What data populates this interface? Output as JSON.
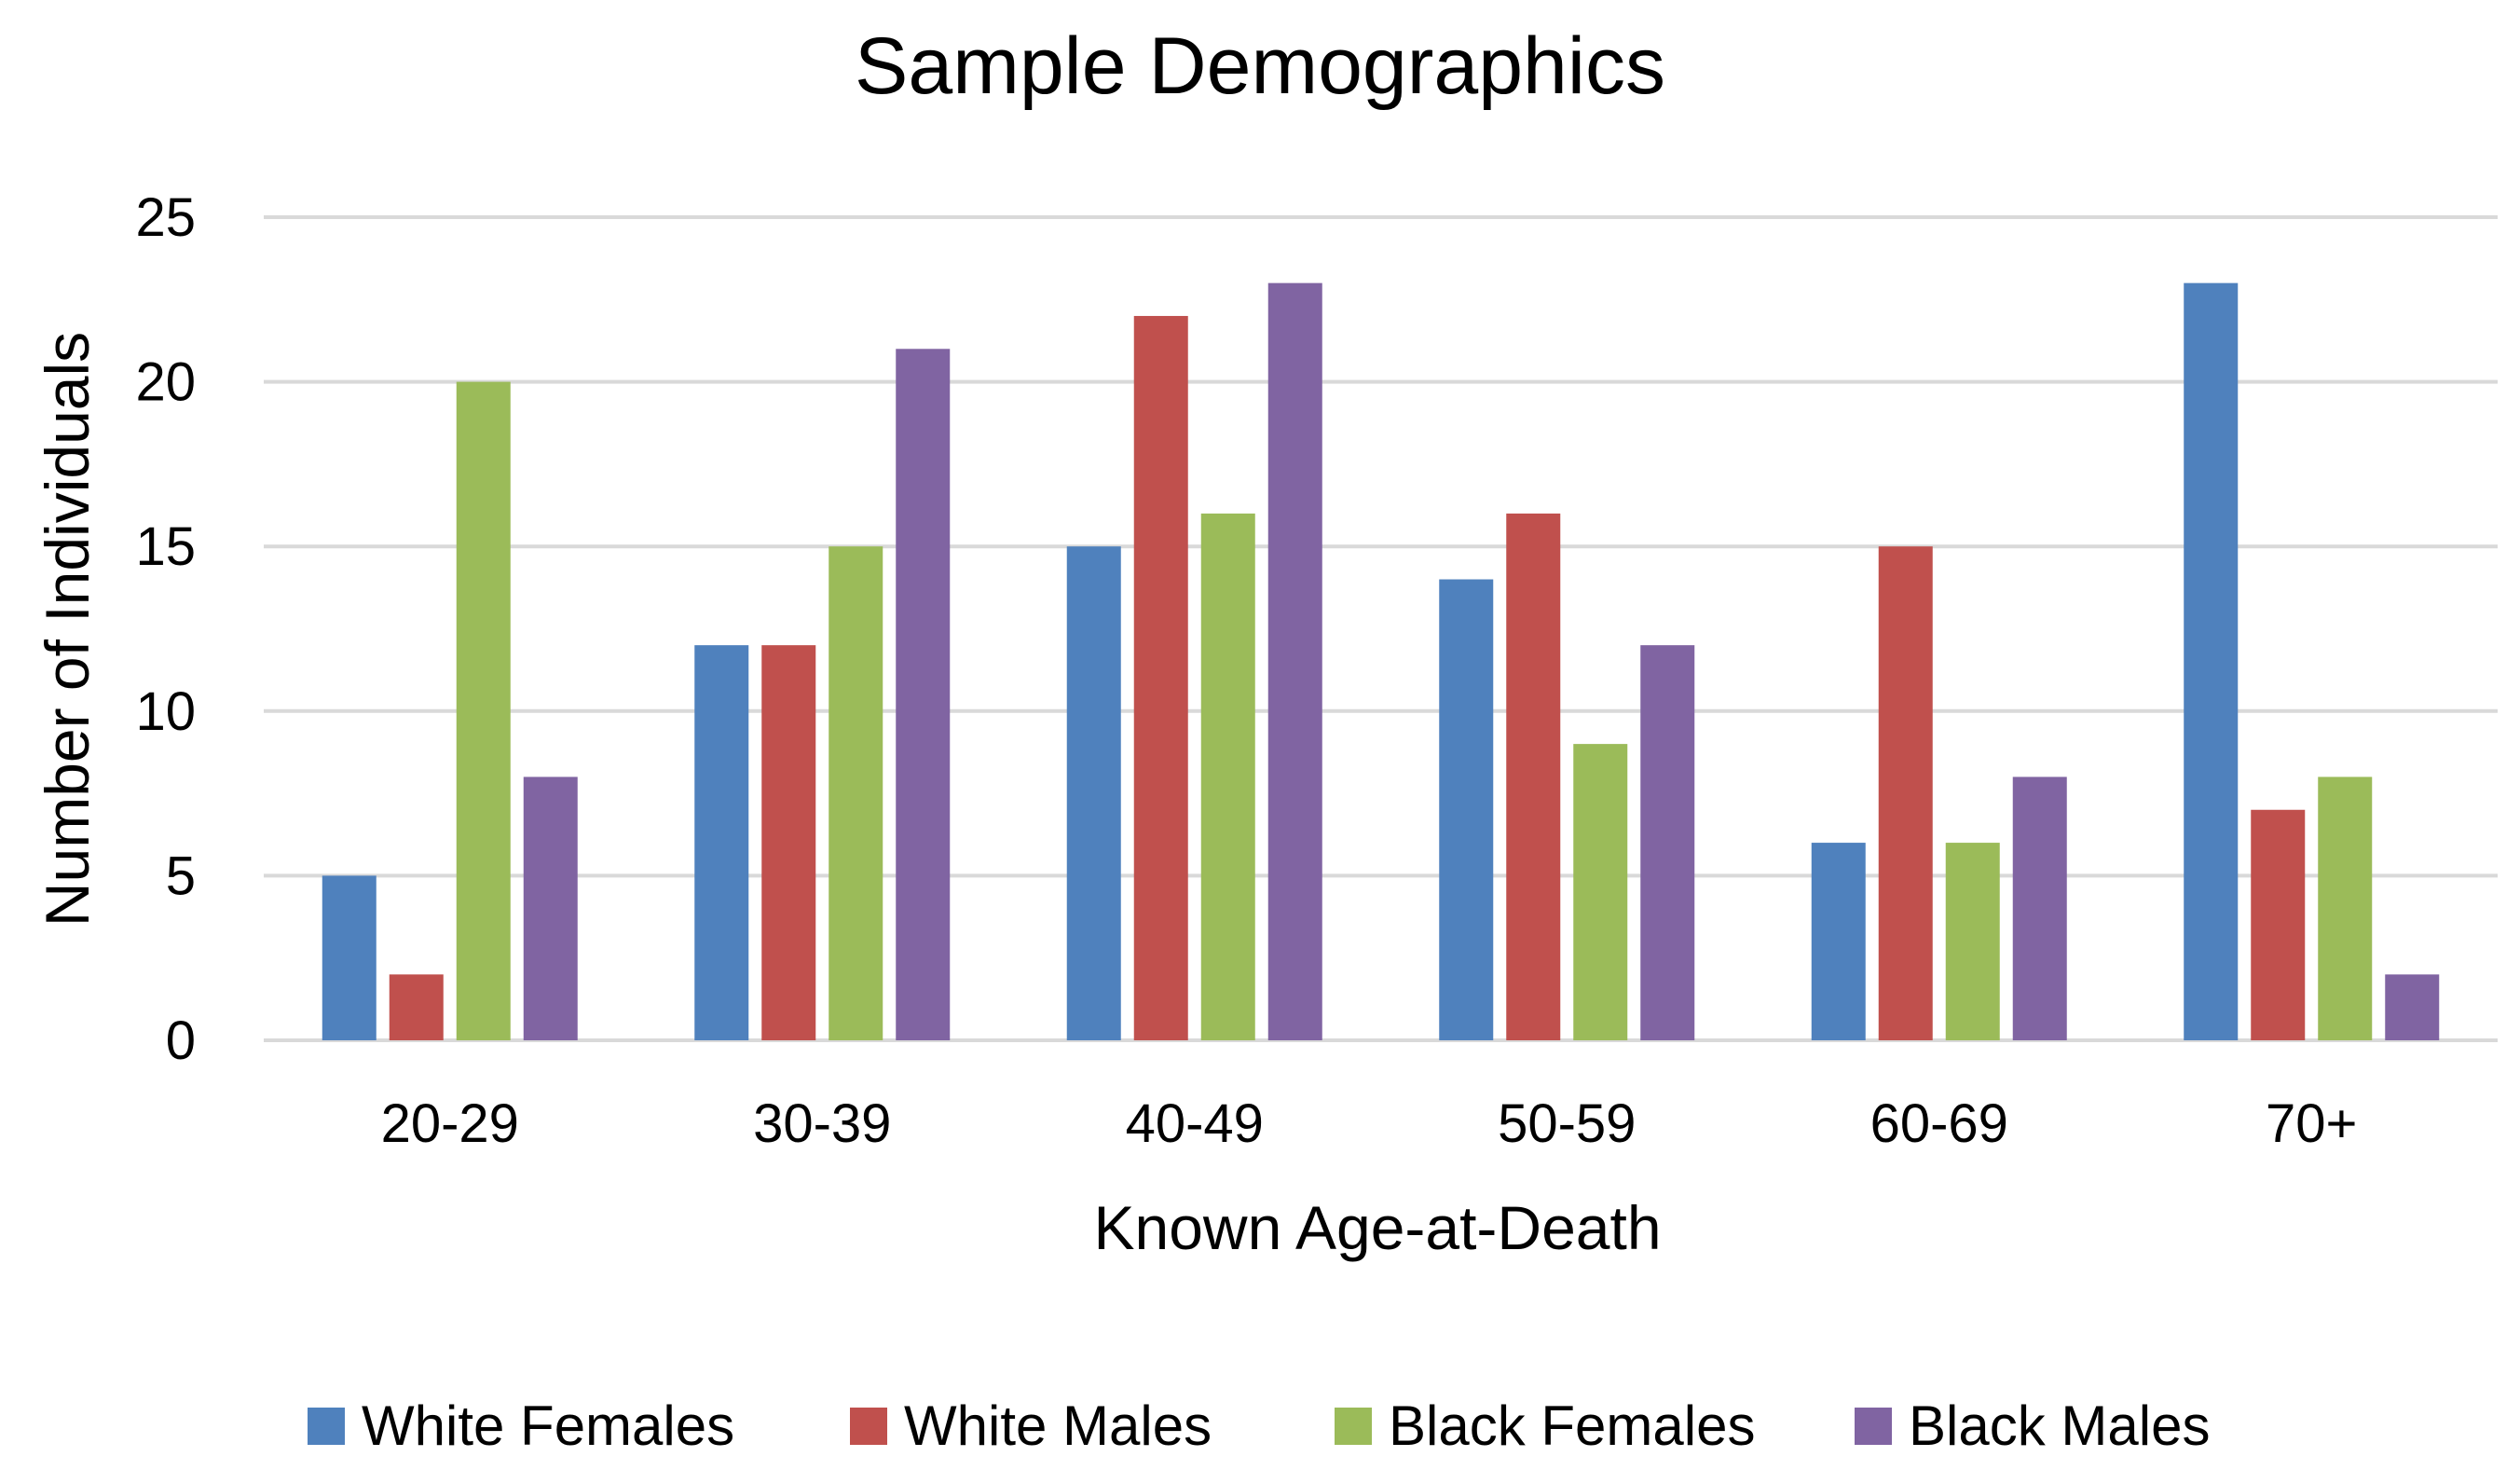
{
  "chart_data": {
    "type": "bar",
    "title": "Sample Demographics",
    "xlabel": "Known Age-at-Death",
    "ylabel": "Number of Individuals",
    "ylim": [
      0,
      25
    ],
    "yticks": [
      0,
      5,
      10,
      15,
      20,
      25
    ],
    "grid": true,
    "legend_position": "bottom",
    "categories": [
      "20-29",
      "30-39",
      "40-49",
      "50-59",
      "60-69",
      "70+"
    ],
    "series": [
      {
        "name": "White Females",
        "color": "#4F81BD",
        "values": [
          5,
          12,
          15,
          14,
          6,
          23
        ]
      },
      {
        "name": "White Males",
        "color": "#C0504D",
        "values": [
          2,
          12,
          22,
          16,
          15,
          7
        ]
      },
      {
        "name": "Black Females",
        "color": "#9BBB59",
        "values": [
          20,
          15,
          16,
          9,
          6,
          8
        ]
      },
      {
        "name": "Black Males",
        "color": "#8064A2",
        "values": [
          8,
          21,
          23,
          12,
          8,
          2
        ]
      }
    ]
  }
}
